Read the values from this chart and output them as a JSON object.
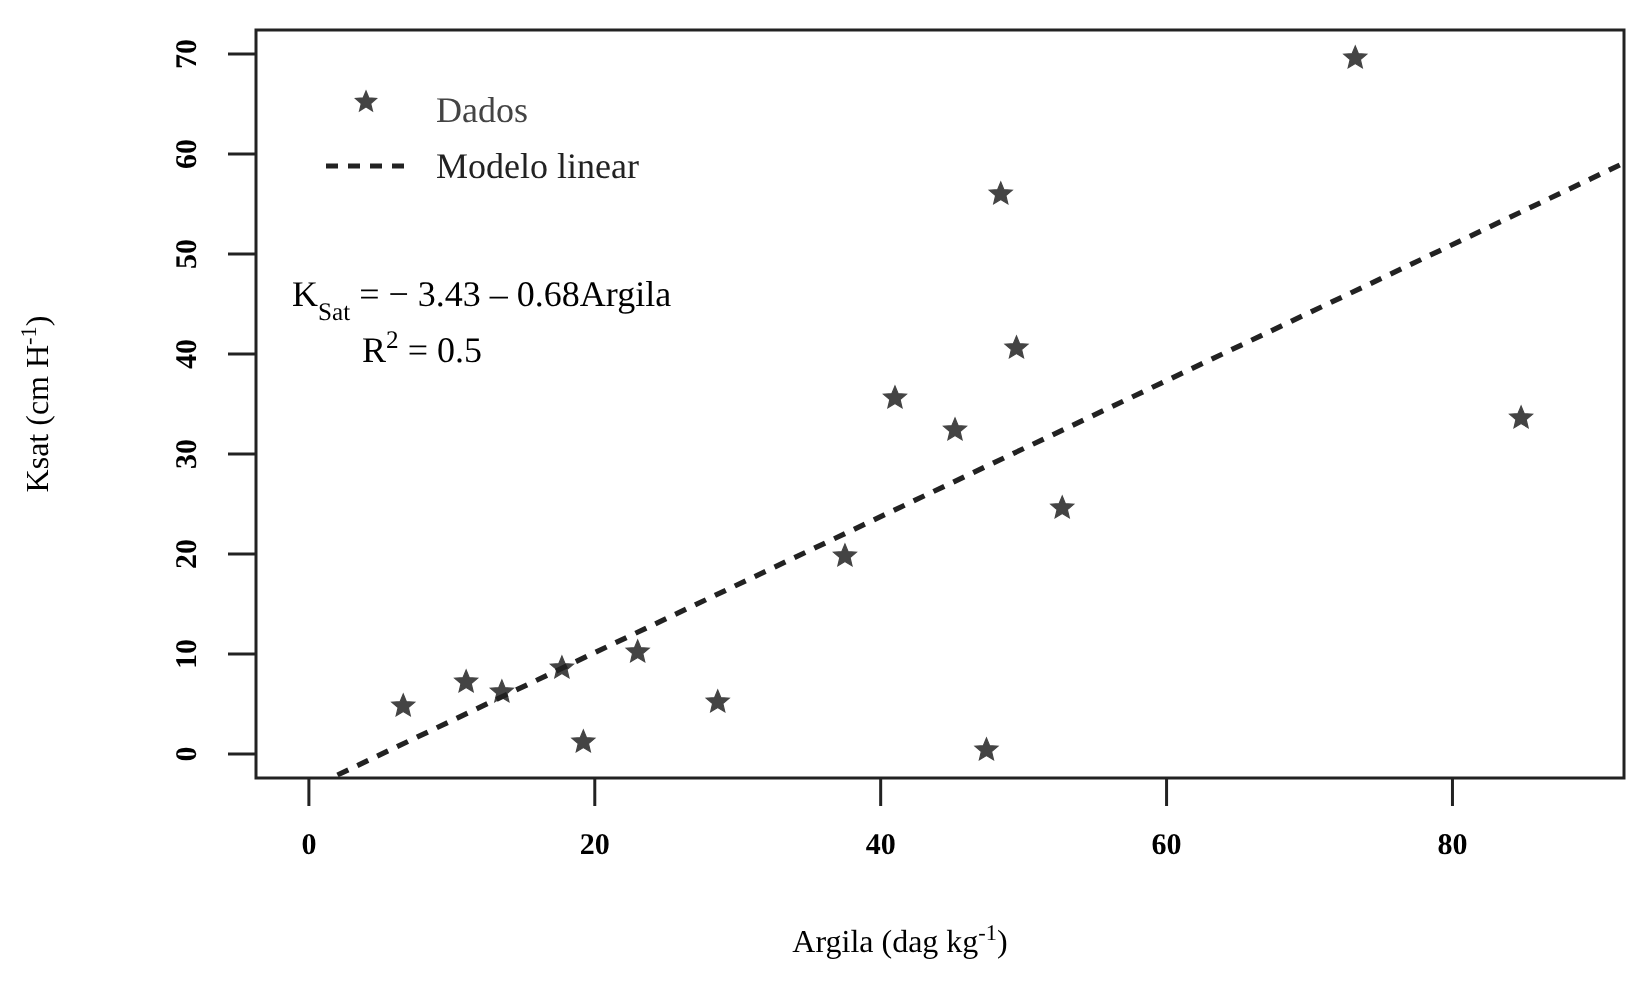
{
  "chart_data": {
    "type": "scatter",
    "xlabel": "Argila (dag kg$^{-1}$)",
    "ylabel": "Ksat (cm H$^{-1}$)",
    "xlim": [
      -3.7,
      92
    ],
    "ylim": [
      -2.4,
      72.4
    ],
    "xticks": [
      0,
      20,
      40,
      60,
      80
    ],
    "yticks": [
      0,
      10,
      20,
      30,
      40,
      50,
      60,
      70
    ],
    "grid": false,
    "legend": "top left",
    "series": [
      {
        "name": "Dados",
        "marker": "star",
        "color": "#444444",
        "x": [
          6.6,
          11.0,
          13.5,
          17.7,
          19.2,
          23.0,
          28.6,
          37.5,
          41.0,
          45.2,
          47.4,
          48.4,
          49.5,
          52.7,
          73.2,
          84.8
        ],
        "values": [
          4.8,
          7.2,
          6.2,
          8.6,
          1.2,
          10.2,
          5.2,
          19.8,
          35.6,
          32.4,
          0.4,
          56,
          40.6,
          24.6,
          69.6,
          33.6
        ]
      },
      {
        "name": "Modelo linear",
        "type": "line",
        "line_style": "dashed",
        "marker": "none",
        "color": "#222222",
        "x": [
          2,
          92
        ],
        "values": [
          -2.1,
          59.1
        ]
      }
    ],
    "annotations": [
      "K$_{Sat}$ = − 3.43 – 0.68Argila",
      "R$^{2}$ = 0.5"
    ]
  }
}
